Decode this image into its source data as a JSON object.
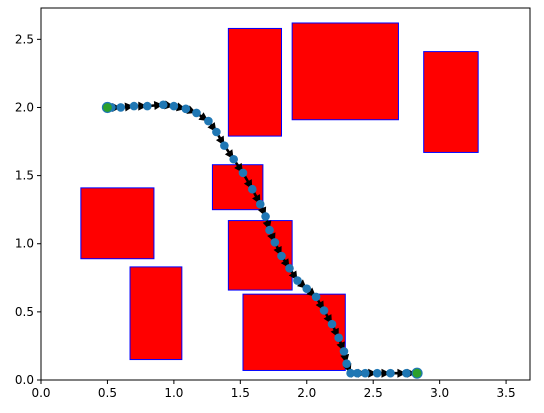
{
  "chart_data": {
    "type": "scatter",
    "title": "",
    "xlabel": "",
    "ylabel": "",
    "xlim": [
      0,
      3.68
    ],
    "ylim": [
      0,
      2.73
    ],
    "x_ticks": [
      0.0,
      0.5,
      1.0,
      1.5,
      2.0,
      2.5,
      3.0,
      3.5
    ],
    "x_tick_labels": [
      "0.0",
      "0.5",
      "1.0",
      "1.5",
      "2.0",
      "2.5",
      "3.0",
      "3.5"
    ],
    "y_ticks": [
      0.0,
      0.5,
      1.0,
      1.5,
      2.0,
      2.5
    ],
    "y_tick_labels": [
      "0.0",
      "0.5",
      "1.0",
      "1.5",
      "2.0",
      "2.5"
    ],
    "grid": false,
    "obstacles": [
      {
        "x0": 0.3,
        "y0": 0.89,
        "x1": 0.85,
        "y1": 1.41
      },
      {
        "x0": 0.67,
        "y0": 0.15,
        "x1": 1.06,
        "y1": 0.83
      },
      {
        "x0": 1.41,
        "y0": 1.79,
        "x1": 1.81,
        "y1": 2.58
      },
      {
        "x0": 1.89,
        "y0": 1.91,
        "x1": 2.69,
        "y1": 2.62
      },
      {
        "x0": 2.88,
        "y0": 1.67,
        "x1": 3.29,
        "y1": 2.41
      },
      {
        "x0": 1.29,
        "y0": 1.25,
        "x1": 1.67,
        "y1": 1.58
      },
      {
        "x0": 1.41,
        "y0": 0.66,
        "x1": 1.89,
        "y1": 1.17
      },
      {
        "x0": 1.52,
        "y0": 0.07,
        "x1": 2.29,
        "y1": 0.63
      }
    ],
    "path": {
      "x": [
        0.5,
        0.53,
        0.6,
        0.7,
        0.8,
        0.92,
        1.0,
        1.09,
        1.17,
        1.26,
        1.32,
        1.38,
        1.45,
        1.52,
        1.59,
        1.65,
        1.69,
        1.72,
        1.76,
        1.81,
        1.87,
        1.93,
        2.0,
        2.07,
        2.13,
        2.19,
        2.24,
        2.28,
        2.3,
        2.33,
        2.38,
        2.44,
        2.53,
        2.63,
        2.75,
        2.82
      ],
      "y": [
        2.0,
        2.0,
        2.0,
        2.01,
        2.01,
        2.02,
        2.01,
        1.99,
        1.96,
        1.9,
        1.82,
        1.72,
        1.62,
        1.52,
        1.4,
        1.29,
        1.2,
        1.1,
        1.01,
        0.91,
        0.82,
        0.73,
        0.67,
        0.61,
        0.51,
        0.41,
        0.31,
        0.21,
        0.12,
        0.05,
        0.05,
        0.05,
        0.05,
        0.05,
        0.05,
        0.05
      ]
    },
    "start": {
      "x": 0.5,
      "y": 2.0
    },
    "goal": {
      "x": 2.83,
      "y": 0.05
    },
    "colors": {
      "obstacle_fill": "#ff0000",
      "obstacle_edge": "#0000ff",
      "path_point": "#1f77b4",
      "arrow": "#000000",
      "endpoint": "#2ca02c"
    }
  }
}
